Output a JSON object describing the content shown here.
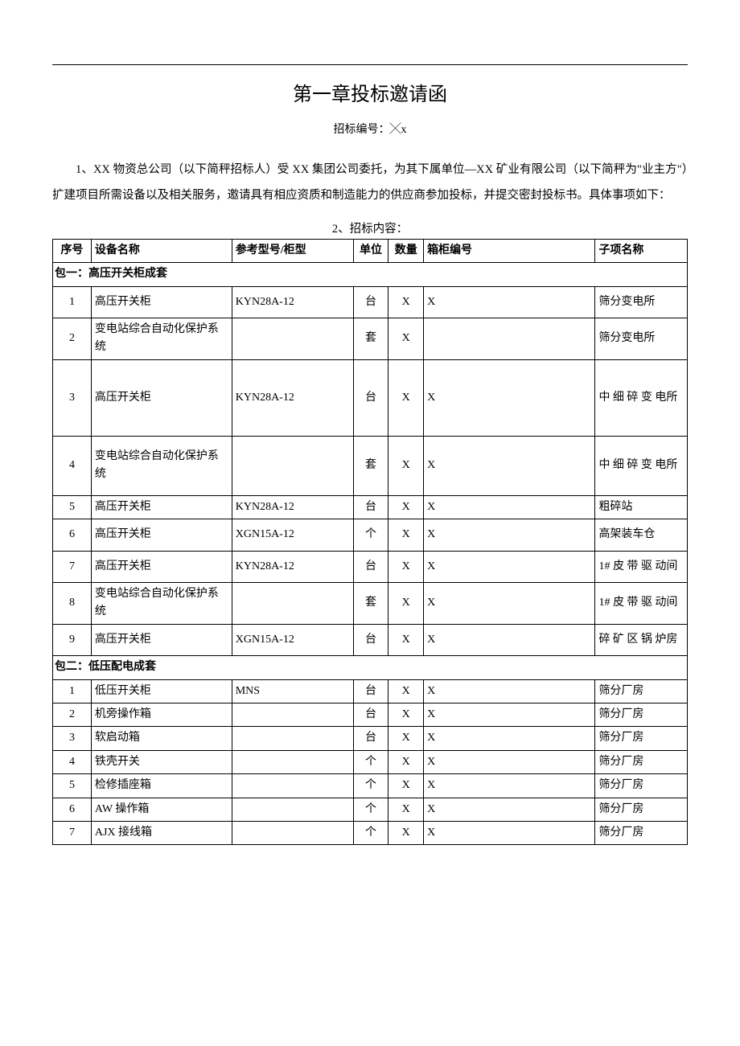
{
  "title": "第一章投标邀请函",
  "subtitle": "招标编号：╳x",
  "paragraph": "1、XX 物资总公司（以下简秤招标人）受 XX 集团公司委托，为其下属单位—XX 矿业有限公司（以下简秤为\"业主方\"）扩建项目所需设备以及相关服务，邀请具有相应资质和制造能力的供应商参加投标，并提交密封投标书。具体事项如下：",
  "section2_label": "2、招标内容：",
  "table": {
    "columns": [
      "序号",
      "设备名称",
      "参考型号/柜型",
      "单位",
      "数量",
      "箱柜编号",
      "子项名称"
    ],
    "group1_label": "包一：高压开关柜成套",
    "group1_rows": [
      {
        "seq": "1",
        "name": "高压开关柜",
        "model": "KYN28A-12",
        "unit": "台",
        "qty": "X",
        "cabno": "X",
        "sub": "筛分变电所",
        "class": "tall-row"
      },
      {
        "seq": "2",
        "name": "变电站综合自动化保护系统",
        "model": "",
        "unit": "套",
        "qty": "X",
        "cabno": "",
        "sub": "筛分变电所",
        "class": ""
      },
      {
        "seq": "3",
        "name": "高压开关柜",
        "model": "KYN28A-12",
        "unit": "台",
        "qty": "X",
        "cabno": "X",
        "sub": "中 细 碎 变 电所",
        "class": "taller-row"
      },
      {
        "seq": "4",
        "name": "变电站综合自动化保护系统",
        "model": "",
        "unit": "套",
        "qty": "X",
        "cabno": "X",
        "sub": "中 细 碎 变 电所",
        "class": "med-row"
      },
      {
        "seq": "5",
        "name": "高压开关柜",
        "model": "KYN28A-12",
        "unit": "台",
        "qty": "X",
        "cabno": "X",
        "sub": "粗碎站",
        "class": ""
      },
      {
        "seq": "6",
        "name": "高压开关柜",
        "model": "XGN15A-12",
        "unit": "个",
        "qty": "X",
        "cabno": "X",
        "sub": "高架装车仓",
        "class": "tall-row"
      },
      {
        "seq": "7",
        "name": "高压开关柜",
        "model": "KYN28A-12",
        "unit": "台",
        "qty": "X",
        "cabno": "X",
        "sub": "1# 皮 带 驱 动间",
        "class": "tall-row"
      },
      {
        "seq": "8",
        "name": "变电站综合自动化保护系统",
        "model": "",
        "unit": "套",
        "qty": "X",
        "cabno": "X",
        "sub": "1# 皮 带 驱 动间",
        "class": ""
      },
      {
        "seq": "9",
        "name": "高压开关柜",
        "model": "XGN15A-12",
        "unit": "台",
        "qty": "X",
        "cabno": "X",
        "sub": "碎 矿 区 锅 炉房",
        "class": "tall-row"
      }
    ],
    "group2_label": "包二：低压配电成套",
    "group2_rows": [
      {
        "seq": "1",
        "name": "低压开关柜",
        "model": "MNS",
        "unit": "台",
        "qty": "X",
        "cabno": "X",
        "sub": "筛分厂房"
      },
      {
        "seq": "2",
        "name": "机旁操作箱",
        "model": "",
        "unit": "台",
        "qty": "X",
        "cabno": "X",
        "sub": "筛分厂房"
      },
      {
        "seq": "3",
        "name": "软启动箱",
        "model": "",
        "unit": "台",
        "qty": "X",
        "cabno": "X",
        "sub": "筛分厂房"
      },
      {
        "seq": "4",
        "name": "铁壳开关",
        "model": "",
        "unit": "个",
        "qty": "X",
        "cabno": "X",
        "sub": "筛分厂房"
      },
      {
        "seq": "5",
        "name": "检修插座箱",
        "model": "",
        "unit": "个",
        "qty": "X",
        "cabno": "X",
        "sub": "筛分厂房"
      },
      {
        "seq": "6",
        "name": "AW 操作箱",
        "model": "",
        "unit": "个",
        "qty": "X",
        "cabno": "X",
        "sub": "筛分厂房"
      },
      {
        "seq": "7",
        "name": "AJX 接线箱",
        "model": "",
        "unit": "个",
        "qty": "X",
        "cabno": "X",
        "sub": "筛分厂房"
      }
    ]
  }
}
